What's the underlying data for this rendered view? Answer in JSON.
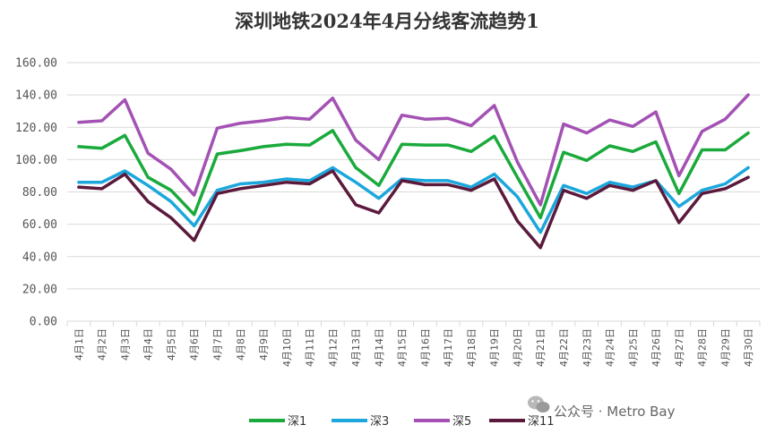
{
  "watermark": {
    "text": "公众号 · Metro Bay",
    "icon": "wechat-icon"
  },
  "chart_data": {
    "type": "line",
    "title": "深圳地铁2024年4月分线客流趋势1",
    "xlabel": "",
    "ylabel": "",
    "ylim": [
      0,
      160
    ],
    "yticks": [
      "0.00",
      "20.00",
      "40.00",
      "60.00",
      "80.00",
      "100.00",
      "120.00",
      "140.00",
      "160.00"
    ],
    "grid": true,
    "legend_position": "bottom",
    "categories": [
      "4月1日",
      "4月2日",
      "4月3日",
      "4月4日",
      "4月5日",
      "4月6日",
      "4月7日",
      "4月8日",
      "4月9日",
      "4月10日",
      "4月11日",
      "4月12日",
      "4月13日",
      "4月14日",
      "4月15日",
      "4月16日",
      "4月17日",
      "4月18日",
      "4月19日",
      "4月20日",
      "4月21日",
      "4月22日",
      "4月23日",
      "4月24日",
      "4月25日",
      "4月26日",
      "4月27日",
      "4月28日",
      "4月29日",
      "4月30日"
    ],
    "series": [
      {
        "name": "深1",
        "color": "#1aaa3c",
        "values": [
          108,
          107,
          115,
          89,
          81,
          66,
          103.5,
          105.5,
          108,
          109.5,
          109,
          118,
          95,
          84,
          109.5,
          109,
          109,
          105,
          114.5,
          89,
          64,
          104.5,
          99.5,
          108.5,
          105,
          111,
          79,
          106,
          106,
          116.5
        ]
      },
      {
        "name": "深3",
        "color": "#1ba7dc",
        "values": [
          86,
          86,
          93,
          84,
          74,
          59,
          81,
          85,
          86,
          88,
          87,
          95,
          86,
          76,
          88,
          87,
          87,
          83,
          91,
          77,
          55,
          84,
          79,
          86,
          83,
          87,
          71,
          81,
          85,
          95
        ]
      },
      {
        "name": "深5",
        "color": "#a352b4",
        "values": [
          123,
          124,
          137,
          104,
          94,
          78,
          119.5,
          122.5,
          124,
          126,
          125,
          138,
          112,
          100,
          127.5,
          125,
          125.5,
          121,
          133.5,
          98.5,
          72,
          122,
          116.5,
          124.5,
          120.5,
          129.5,
          90,
          117.5,
          125,
          140
        ]
      },
      {
        "name": "深11",
        "color": "#5b1a3c",
        "values": [
          83,
          82,
          91,
          74,
          64,
          50,
          79,
          82,
          84,
          86,
          85,
          93,
          72,
          67,
          87,
          84.5,
          84.5,
          81,
          88,
          62,
          45.5,
          81,
          76,
          84,
          81,
          87,
          61,
          79,
          82,
          89
        ]
      }
    ]
  }
}
